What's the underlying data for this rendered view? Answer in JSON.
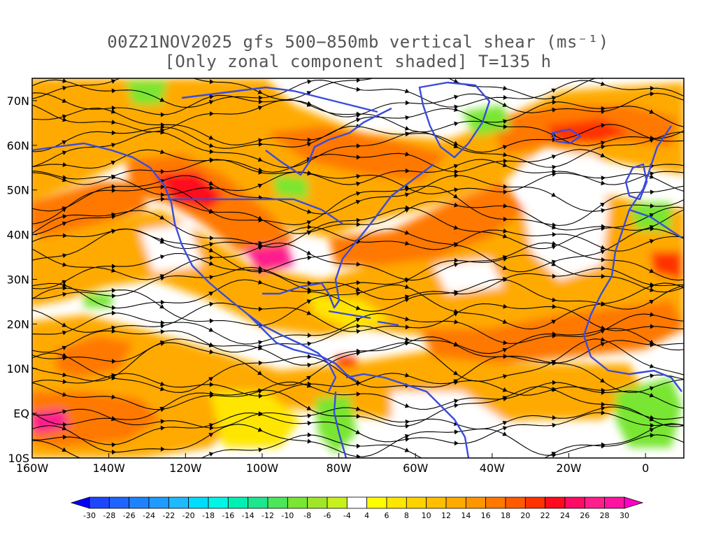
{
  "title": {
    "line1": "00Z21NOV2025 gfs 500−850mb vertical shear (ms⁻¹)",
    "line2": "[Only zonal component shaded] T=135 h"
  },
  "map": {
    "lon_min": -160,
    "lon_max": 10,
    "lat_min": -10,
    "lat_max": 75,
    "lon_ticks": [
      {
        "lon": -160,
        "label": "160W"
      },
      {
        "lon": -140,
        "label": "140W"
      },
      {
        "lon": -120,
        "label": "120W"
      },
      {
        "lon": -100,
        "label": "100W"
      },
      {
        "lon": -80,
        "label": "80W"
      },
      {
        "lon": -60,
        "label": "60W"
      },
      {
        "lon": -40,
        "label": "40W"
      },
      {
        "lon": -20,
        "label": "20W"
      },
      {
        "lon": 0,
        "label": "0"
      }
    ],
    "lat_ticks": [
      {
        "lat": -10,
        "label": "10S"
      },
      {
        "lat": 0,
        "label": "EQ"
      },
      {
        "lat": 10,
        "label": "10N"
      },
      {
        "lat": 20,
        "label": "20N"
      },
      {
        "lat": 30,
        "label": "30N"
      },
      {
        "lat": 40,
        "label": "40N"
      },
      {
        "lat": 50,
        "label": "50N"
      },
      {
        "lat": 60,
        "label": "60N"
      },
      {
        "lat": 70,
        "label": "70N"
      }
    ],
    "coastline_color": "#3a4bdc",
    "streamline_color": "#000000"
  },
  "colorbar": {
    "levels": [
      "-30",
      "-28",
      "-26",
      "-24",
      "-22",
      "-20",
      "-18",
      "-16",
      "-14",
      "-12",
      "-10",
      "-8",
      "-6",
      "-4",
      "4",
      "6",
      "8",
      "10",
      "12",
      "14",
      "16",
      "18",
      "20",
      "22",
      "24",
      "26",
      "28",
      "30"
    ],
    "colors": [
      "#0000ff",
      "#1e46ff",
      "#1e64ff",
      "#1e82ff",
      "#1e9bff",
      "#1eb9ff",
      "#00dcff",
      "#00f5e6",
      "#00f0b4",
      "#1ee68c",
      "#4be65a",
      "#78e632",
      "#a0e628",
      "#c8f01e",
      "#ffffff",
      "#ffff00",
      "#ffe600",
      "#ffd200",
      "#ffbe00",
      "#ffaa00",
      "#ff9600",
      "#ff7800",
      "#ff5a00",
      "#ff3200",
      "#ff0a1e",
      "#ff0a64",
      "#ff1e8c",
      "#ff14a0",
      "#ff00c8"
    ]
  }
}
